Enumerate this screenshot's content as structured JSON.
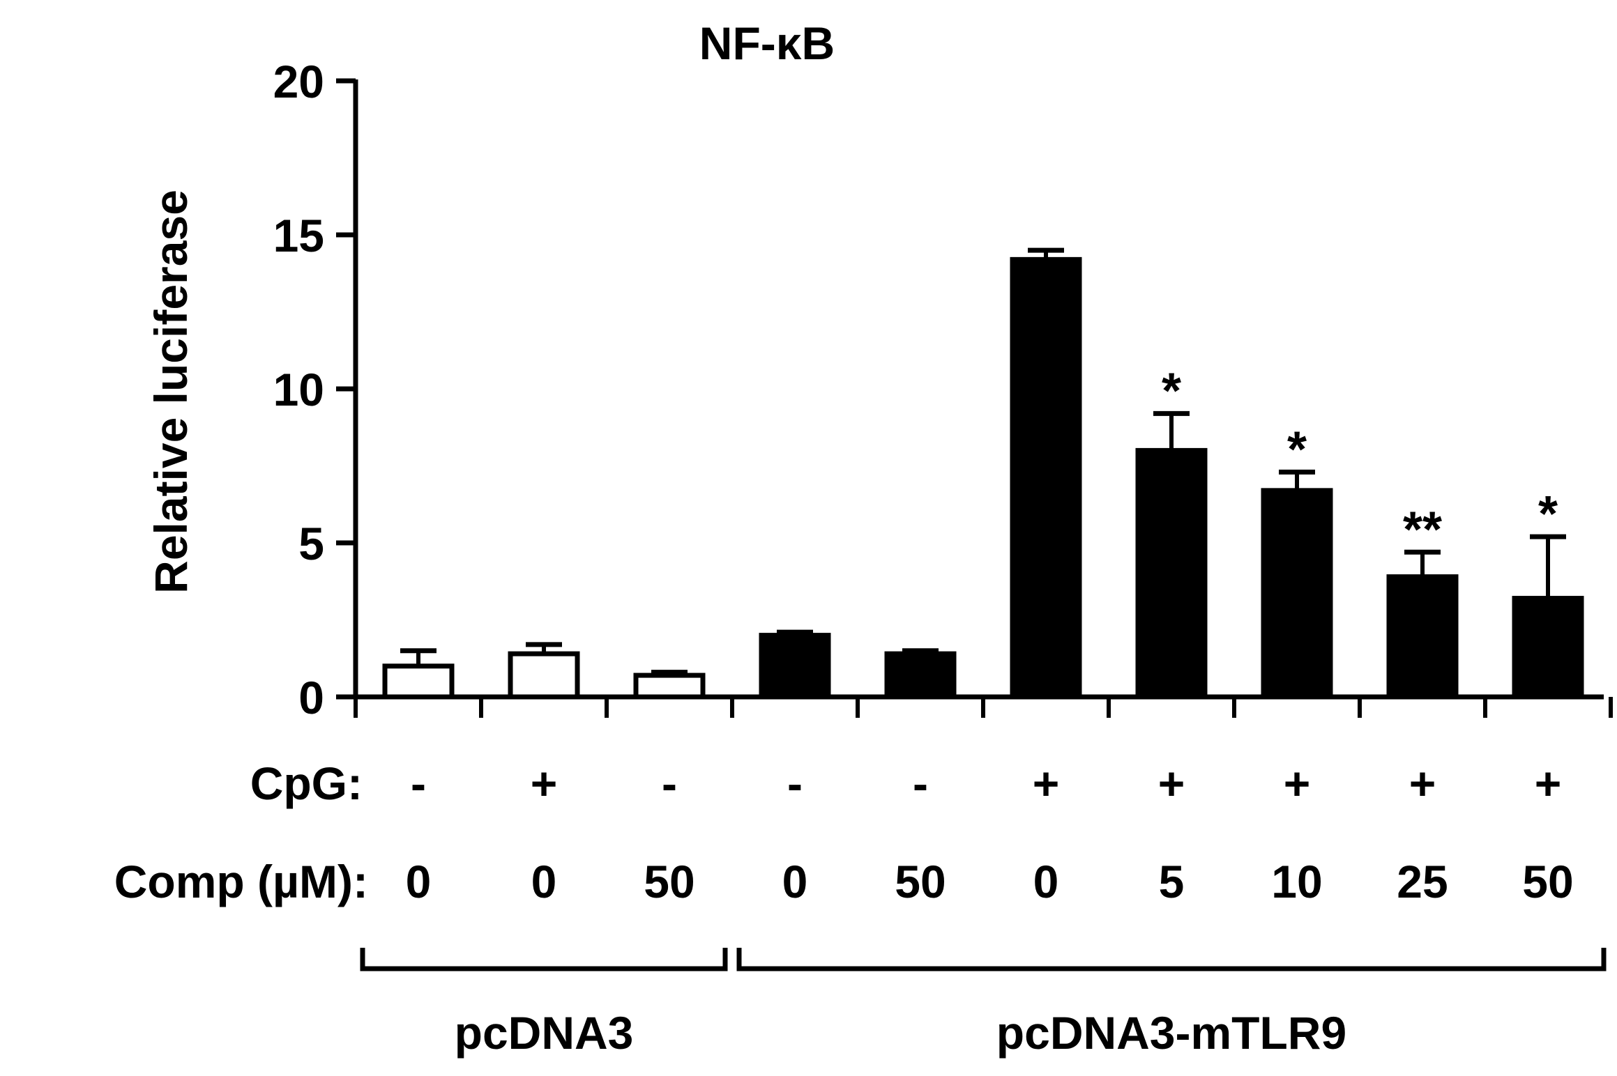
{
  "chart_data": {
    "type": "bar",
    "title": "NF-κB",
    "ylabel": "Relative luciferase",
    "xlabel": "",
    "ylim": [
      0,
      20
    ],
    "yticks": [
      0,
      5,
      10,
      15,
      20
    ],
    "grid": false,
    "row_labels": {
      "cpg": "CpG:",
      "comp": "Comp (µM):"
    },
    "bars": [
      {
        "cpg": "-",
        "comp": "0",
        "value": 1.0,
        "error": 0.5,
        "fill": "#ffffff",
        "sig": ""
      },
      {
        "cpg": "+",
        "comp": "0",
        "value": 1.4,
        "error": 0.3,
        "fill": "#ffffff",
        "sig": ""
      },
      {
        "cpg": "-",
        "comp": "50",
        "value": 0.7,
        "error": 0.1,
        "fill": "#ffffff",
        "sig": ""
      },
      {
        "cpg": "-",
        "comp": "0",
        "value": 2.0,
        "error": 0.1,
        "fill": "#000000",
        "sig": ""
      },
      {
        "cpg": "-",
        "comp": "50",
        "value": 1.4,
        "error": 0.1,
        "fill": "#000000",
        "sig": ""
      },
      {
        "cpg": "+",
        "comp": "0",
        "value": 14.2,
        "error": 0.3,
        "fill": "#000000",
        "sig": ""
      },
      {
        "cpg": "+",
        "comp": "5",
        "value": 8.0,
        "error": 1.2,
        "fill": "#000000",
        "sig": "*"
      },
      {
        "cpg": "+",
        "comp": "10",
        "value": 6.7,
        "error": 0.6,
        "fill": "#000000",
        "sig": "*"
      },
      {
        "cpg": "+",
        "comp": "25",
        "value": 3.9,
        "error": 0.8,
        "fill": "#000000",
        "sig": "**"
      },
      {
        "cpg": "+",
        "comp": "50",
        "value": 3.2,
        "error": 2.0,
        "fill": "#000000",
        "sig": "*"
      }
    ],
    "groups": [
      {
        "label": "pcDNA3",
        "first": 0,
        "last": 2
      },
      {
        "label": "pcDNA3-mTLR9",
        "first": 3,
        "last": 9
      }
    ]
  }
}
